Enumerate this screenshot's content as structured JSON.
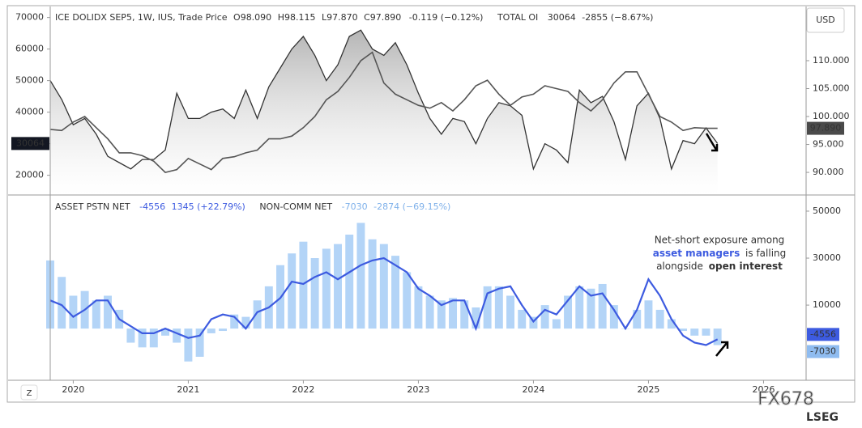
{
  "chart_data": [
    {
      "type": "line",
      "x": [
        2019.8,
        2019.9,
        2020.0,
        2020.1,
        2020.2,
        2020.3,
        2020.4,
        2020.5,
        2020.6,
        2020.7,
        2020.8,
        2020.9,
        2021.0,
        2021.1,
        2021.2,
        2021.3,
        2021.4,
        2021.5,
        2021.6,
        2021.7,
        2021.8,
        2021.9,
        2022.0,
        2022.1,
        2022.2,
        2022.3,
        2022.4,
        2022.5,
        2022.6,
        2022.7,
        2022.8,
        2022.9,
        2023.0,
        2023.1,
        2023.2,
        2023.3,
        2023.4,
        2023.5,
        2023.6,
        2023.7,
        2023.8,
        2023.9,
        2024.0,
        2024.1,
        2024.2,
        2024.3,
        2024.4,
        2024.5,
        2024.6,
        2024.7,
        2024.8,
        2024.9,
        2025.0,
        2025.1,
        2025.2,
        2025.3,
        2025.4,
        2025.5,
        2025.6
      ],
      "xlim": [
        2019.8,
        2026.37
      ],
      "ylim": [
        14000,
        73500
      ],
      "yticks": [
        20000,
        30000,
        40000,
        50000,
        60000,
        70000
      ],
      "y2lim": [
        86.1,
        119.7
      ],
      "y2ticks": [
        {
          "value": 90,
          "label": "90.000"
        },
        {
          "value": 95,
          "label": "95.000"
        },
        {
          "value": 100,
          "label": "100.000"
        },
        {
          "value": 105,
          "label": "105.000"
        },
        {
          "value": 110,
          "label": "110.000"
        }
      ],
      "y2_unit": "USD",
      "series": [
        {
          "name": "TOTAL OI",
          "color": "#333333",
          "stats": [
            "30064",
            "-2855 (−8.67%)"
          ],
          "last_label": "30064",
          "values": [
            50000,
            44000,
            36000,
            38000,
            33000,
            26000,
            24000,
            22000,
            25000,
            25000,
            28000,
            46000,
            38000,
            38000,
            40000,
            41000,
            38000,
            47000,
            38000,
            48000,
            54000,
            60000,
            64000,
            58000,
            50000,
            55000,
            64000,
            66000,
            60000,
            58000,
            62000,
            55000,
            46000,
            38000,
            33000,
            38000,
            37000,
            30000,
            38000,
            43000,
            42000,
            39000,
            22000,
            30000,
            28000,
            24000,
            47000,
            43000,
            45000,
            37000,
            25000,
            42000,
            46000,
            38000,
            22000,
            31000,
            30000,
            35000,
            30064
          ]
        },
        {
          "name": "ICE DOLIDX SEP5, 1W, IUS, Trade Price",
          "axis": "y2",
          "color": "#555555",
          "stats": [
            "O98.090",
            "H98.115",
            "L97.870",
            "C97.890",
            "-0.119 (−0.12%)"
          ],
          "last_label": "97.890",
          "values": [
            97.7,
            97.5,
            99,
            100,
            98,
            96,
            93.5,
            93.5,
            93,
            92,
            90,
            90.5,
            92.5,
            91.5,
            90.5,
            92.5,
            92.8,
            93.5,
            94,
            96,
            96,
            96.5,
            98,
            100,
            103,
            104.5,
            107,
            110,
            111.5,
            106,
            104,
            103,
            102,
            101.5,
            102.5,
            101,
            103,
            105.5,
            106.5,
            104,
            102,
            103.5,
            104,
            105.5,
            105,
            104.5,
            102.5,
            101,
            103,
            106,
            108,
            108,
            104,
            100,
            99,
            97.5,
            98,
            97.89,
            97.89
          ]
        }
      ]
    },
    {
      "type": "combo",
      "x": [
        2019.8,
        2019.9,
        2020.0,
        2020.1,
        2020.2,
        2020.3,
        2020.4,
        2020.5,
        2020.6,
        2020.7,
        2020.8,
        2020.9,
        2021.0,
        2021.1,
        2021.2,
        2021.3,
        2021.4,
        2021.5,
        2021.6,
        2021.7,
        2021.8,
        2021.9,
        2022.0,
        2022.1,
        2022.2,
        2022.3,
        2022.4,
        2022.5,
        2022.6,
        2022.7,
        2022.8,
        2022.9,
        2023.0,
        2023.1,
        2023.2,
        2023.3,
        2023.4,
        2023.5,
        2023.6,
        2023.7,
        2023.8,
        2023.9,
        2024.0,
        2024.1,
        2024.2,
        2024.3,
        2024.4,
        2024.5,
        2024.6,
        2024.7,
        2024.8,
        2024.9,
        2025.0,
        2025.1,
        2025.2,
        2025.3,
        2025.4,
        2025.5,
        2025.6
      ],
      "xlim": [
        2019.8,
        2026.37
      ],
      "xticks": [
        2020,
        2021,
        2022,
        2023,
        2024,
        2025,
        2026
      ],
      "ylim": [
        -22000,
        55500
      ],
      "yticks": [
        10000,
        30000,
        50000
      ],
      "series": [
        {
          "name": "NON-COMM NET",
          "kind": "bar",
          "color": "#b3d4f7",
          "stats": [
            "-7030",
            "-2874 (−69.15%)"
          ],
          "last_label": "-7030",
          "values": [
            29000,
            22000,
            14000,
            16000,
            12000,
            14000,
            8000,
            -6000,
            -8000,
            -8000,
            -3000,
            -6000,
            -14000,
            -12000,
            -2000,
            -1000,
            6000,
            5000,
            12000,
            18000,
            27000,
            32000,
            37000,
            30000,
            34000,
            36000,
            40000,
            45000,
            38000,
            36000,
            31000,
            24000,
            18000,
            14000,
            12000,
            13000,
            12000,
            9000,
            18000,
            18000,
            14000,
            8000,
            5000,
            10000,
            4000,
            14000,
            18000,
            17000,
            19000,
            10000,
            0,
            8000,
            12000,
            8000,
            4000,
            -1000,
            -3000,
            -3000,
            -7030
          ]
        },
        {
          "name": "ASSET PSTN NET",
          "kind": "line",
          "color": "#3d5be0",
          "stats": [
            "-4556",
            "1345 (+22.79%)"
          ],
          "last_label": "-4556",
          "values": [
            12000,
            10000,
            5000,
            8000,
            12000,
            12000,
            4000,
            1000,
            -2000,
            -2000,
            0,
            -2000,
            -4000,
            -3000,
            4000,
            6000,
            5000,
            0,
            7000,
            9000,
            13000,
            20000,
            19000,
            22000,
            24000,
            21000,
            24000,
            27000,
            29000,
            30000,
            27000,
            24000,
            17000,
            14000,
            10000,
            12000,
            12000,
            0,
            15000,
            17000,
            18000,
            10000,
            3000,
            8000,
            6000,
            12000,
            18000,
            14000,
            15000,
            8000,
            0,
            8000,
            21000,
            14000,
            4000,
            -3000,
            -6000,
            -7000,
            -4556
          ]
        }
      ],
      "annotation": [
        "Net-short exposure among",
        "asset managers",
        "is falling",
        "alongside",
        "open interest"
      ],
      "watermark": [
        "FX678",
        "LSEG"
      ],
      "reset_button": "Z"
    }
  ]
}
